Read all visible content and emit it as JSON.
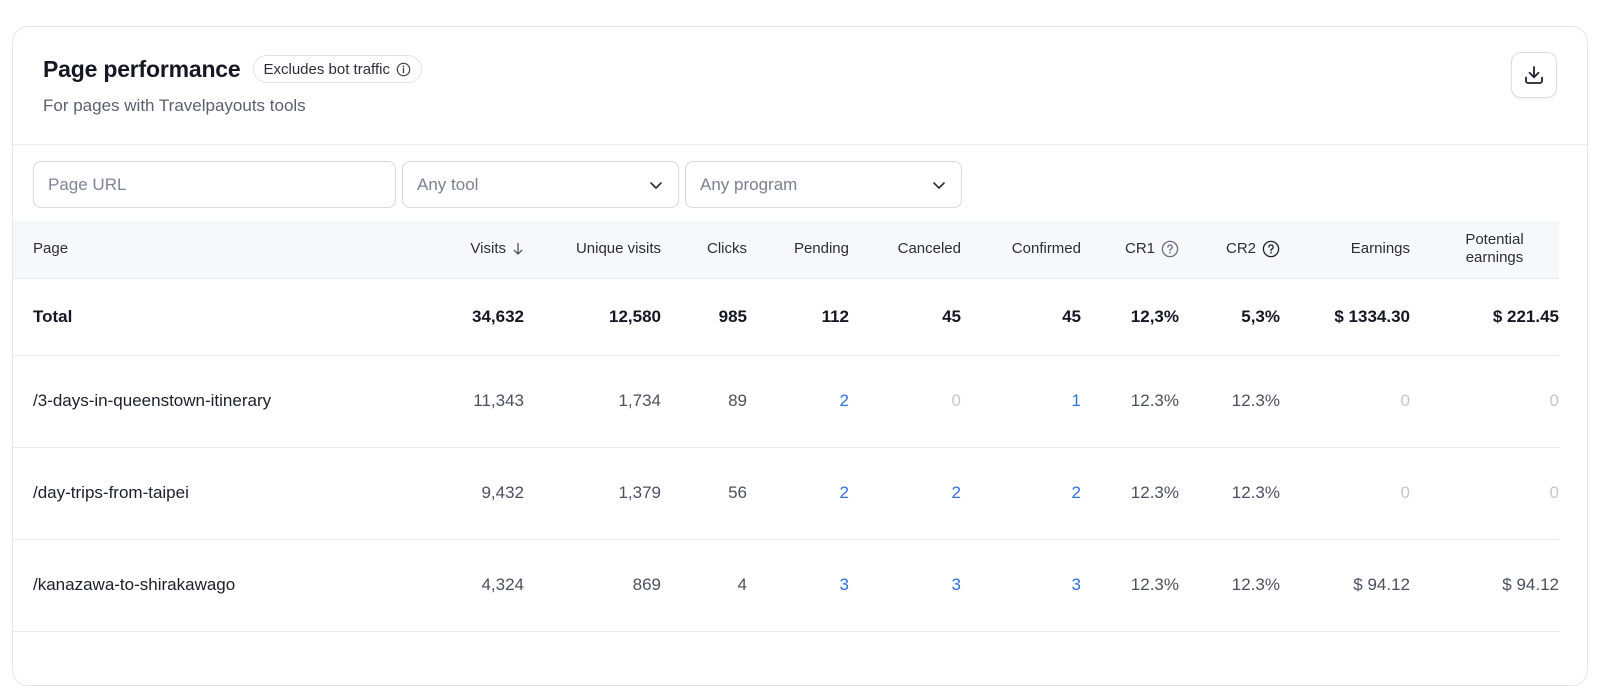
{
  "header": {
    "title": "Page performance",
    "badge": "Excludes bot traffic",
    "subtitle": "For pages with Travelpayouts tools"
  },
  "filters": {
    "url_placeholder": "Page URL",
    "tool_value": "Any tool",
    "program_value": "Any program"
  },
  "columns": {
    "page": "Page",
    "visits": "Visits",
    "unique": "Unique visits",
    "clicks": "Clicks",
    "pending": "Pending",
    "canceled": "Canceled",
    "confirmed": "Confirmed",
    "cr1": "CR1",
    "cr2": "CR2",
    "earnings": "Earnings",
    "potential_line1": "Potential",
    "potential_line2": "earnings"
  },
  "total": {
    "page": "Total",
    "visits": "34,632",
    "unique": "12,580",
    "clicks": "985",
    "pending": "112",
    "canceled": "45",
    "confirmed": "45",
    "cr1": "12,3%",
    "cr2": "5,3%",
    "earnings": "$ 1334.30",
    "potential": "$ 221.45"
  },
  "rows": [
    {
      "page": "/3-days-in-queenstown-itinerary",
      "visits": "11,343",
      "unique": "1,734",
      "clicks": "89",
      "pending": "2",
      "canceled": "0",
      "confirmed": "1",
      "cr1": "12.3%",
      "cr2": "12.3%",
      "earnings": "0",
      "potential": "0"
    },
    {
      "page": "/day-trips-from-taipei",
      "visits": "9,432",
      "unique": "1,379",
      "clicks": "56",
      "pending": "2",
      "canceled": "2",
      "confirmed": "2",
      "cr1": "12.3%",
      "cr2": "12.3%",
      "earnings": "0",
      "potential": "0"
    },
    {
      "page": "/kanazawa-to-shirakawago",
      "visits": "4,324",
      "unique": "869",
      "clicks": "4",
      "pending": "3",
      "canceled": "3",
      "confirmed": "3",
      "cr1": "12.3%",
      "cr2": "12.3%",
      "earnings": "$ 94.12",
      "potential": "$ 94.12"
    }
  ],
  "colors": {
    "link": "#2f6fe0",
    "zero": "#c3c7cf",
    "header_bg": "#f7f8fa"
  },
  "icons": {
    "badge_icon": "info-icon",
    "download_icon": "download-icon",
    "sort_icon": "arrow-down-icon",
    "help_icon": "question-icon",
    "select_icon": "chevron-down-icon"
  }
}
